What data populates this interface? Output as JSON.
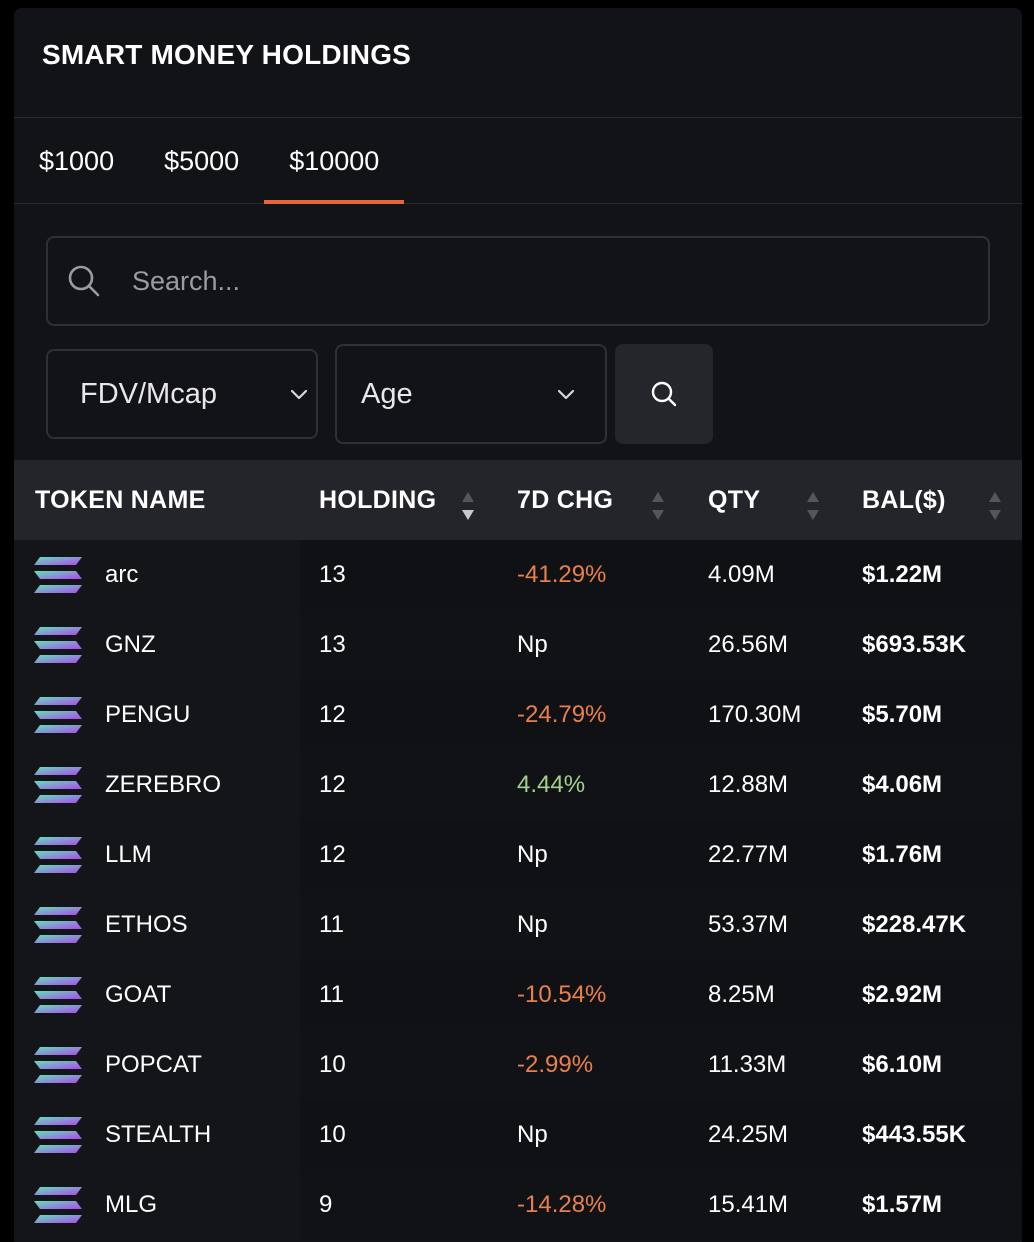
{
  "header": {
    "title": "SMART MONEY HOLDINGS"
  },
  "tabs": [
    {
      "label": "$1000",
      "active": false
    },
    {
      "label": "$5000",
      "active": false
    },
    {
      "label": "$10000",
      "active": true
    }
  ],
  "search": {
    "placeholder": "Search..."
  },
  "filters": {
    "fdv": {
      "selected": "FDV/Mcap"
    },
    "age": {
      "selected": "Age"
    }
  },
  "table": {
    "columns": [
      "TOKEN NAME",
      "HOLDING",
      "7D CHG",
      "QTY",
      "BAL($)"
    ],
    "rows": [
      {
        "name": "arc",
        "holding": "13",
        "chg": "-41.29%",
        "trend": "neg",
        "qty": "4.09M",
        "bal": "$1.22M"
      },
      {
        "name": "GNZ",
        "holding": "13",
        "chg": "Np",
        "trend": "neu",
        "qty": "26.56M",
        "bal": "$693.53K"
      },
      {
        "name": "PENGU",
        "holding": "12",
        "chg": "-24.79%",
        "trend": "neg",
        "qty": "170.30M",
        "bal": "$5.70M"
      },
      {
        "name": "ZEREBRO",
        "holding": "12",
        "chg": "4.44%",
        "trend": "pos",
        "qty": "12.88M",
        "bal": "$4.06M"
      },
      {
        "name": "LLM",
        "holding": "12",
        "chg": "Np",
        "trend": "neu",
        "qty": "22.77M",
        "bal": "$1.76M"
      },
      {
        "name": "ETHOS",
        "holding": "11",
        "chg": "Np",
        "trend": "neu",
        "qty": "53.37M",
        "bal": "$228.47K"
      },
      {
        "name": "GOAT",
        "holding": "11",
        "chg": "-10.54%",
        "trend": "neg",
        "qty": "8.25M",
        "bal": "$2.92M"
      },
      {
        "name": "POPCAT",
        "holding": "10",
        "chg": "-2.99%",
        "trend": "neg",
        "qty": "11.33M",
        "bal": "$6.10M"
      },
      {
        "name": "STEALTH",
        "holding": "10",
        "chg": "Np",
        "trend": "neu",
        "qty": "24.25M",
        "bal": "$443.55K"
      },
      {
        "name": "MLG",
        "holding": "9",
        "chg": "-14.28%",
        "trend": "neg",
        "qty": "15.41M",
        "bal": "$1.57M"
      }
    ]
  },
  "colors": {
    "accent": "#e8643f",
    "negative": "#e8804b",
    "positive": "#a3d18a",
    "panel": "#121316",
    "table_header": "#24252a"
  },
  "icons": {
    "token": "solana-logo-icon",
    "search": "search-icon",
    "dropdown": "chevron-down-icon",
    "sort": "sort-arrows-icon"
  }
}
